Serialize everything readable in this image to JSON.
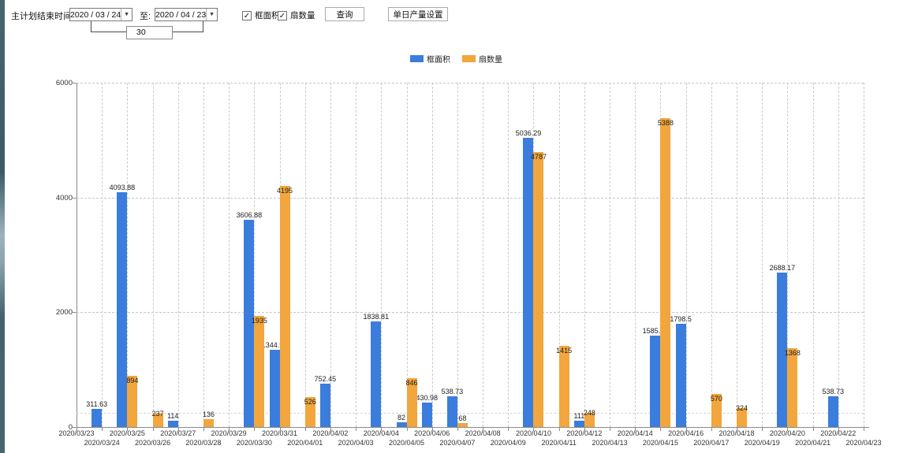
{
  "toolbar": {
    "label_end_time": "主计划结束时间:",
    "date_from": "2020 / 03 / 24",
    "to_label": "至:",
    "date_to": "2020 / 04 / 23",
    "interval_days": "30",
    "checkbox_frame_area": {
      "label": "框面积",
      "checked": true
    },
    "checkbox_fan_count": {
      "label": "扇数量",
      "checked": true
    },
    "query_button": "查询",
    "daily_output_button": "单日产量设置",
    "check_glyph": "✓",
    "dropdown_glyph": "▼"
  },
  "legend": {
    "items": [
      {
        "label": "框面积",
        "color": "#3B7DDD"
      },
      {
        "label": "扇数量",
        "color": "#F2A63D"
      }
    ]
  },
  "chart_data": {
    "type": "bar",
    "title": "",
    "xlabel": "",
    "ylabel": "",
    "ylim": [
      0,
      6000
    ],
    "yticks": [
      0,
      2000,
      4000,
      6000
    ],
    "grid": "dashed",
    "legend_position": "top",
    "reference_line": 250,
    "categories": [
      "2020/03/23",
      "2020/03/24",
      "2020/03/25",
      "2020/03/26",
      "2020/03/27",
      "2020/03/28",
      "2020/03/29",
      "2020/03/30",
      "2020/03/31",
      "2020/04/01",
      "2020/04/02",
      "2020/04/03",
      "2020/04/04",
      "2020/04/05",
      "2020/04/06",
      "2020/04/07",
      "2020/04/08",
      "2020/04/09",
      "2020/04/10",
      "2020/04/11",
      "2020/04/12",
      "2020/04/13",
      "2020/04/14",
      "2020/04/15",
      "2020/04/16",
      "2020/04/17",
      "2020/04/18",
      "2020/04/19",
      "2020/04/20",
      "2020/04/21",
      "2020/04/22",
      "2020/04/23"
    ],
    "series": [
      {
        "name": "框面积",
        "color": "#3B7DDD",
        "values": [
          null,
          311.63,
          4093.88,
          null,
          114,
          null,
          null,
          3606.88,
          1344.95,
          null,
          752.45,
          null,
          1838.81,
          82,
          430.98,
          538.73,
          null,
          null,
          5036.29,
          null,
          111,
          null,
          null,
          1585.96,
          1798.5,
          null,
          null,
          null,
          2688.17,
          null,
          538.73,
          null
        ]
      },
      {
        "name": "扇数量",
        "color": "#F2A63D",
        "values": [
          null,
          null,
          894,
          237,
          null,
          136,
          null,
          1935,
          4195,
          526,
          null,
          null,
          null,
          846,
          null,
          68,
          null,
          null,
          4787,
          1415,
          248,
          null,
          null,
          5388,
          null,
          570,
          324,
          null,
          1368,
          null,
          null,
          null
        ]
      }
    ]
  }
}
